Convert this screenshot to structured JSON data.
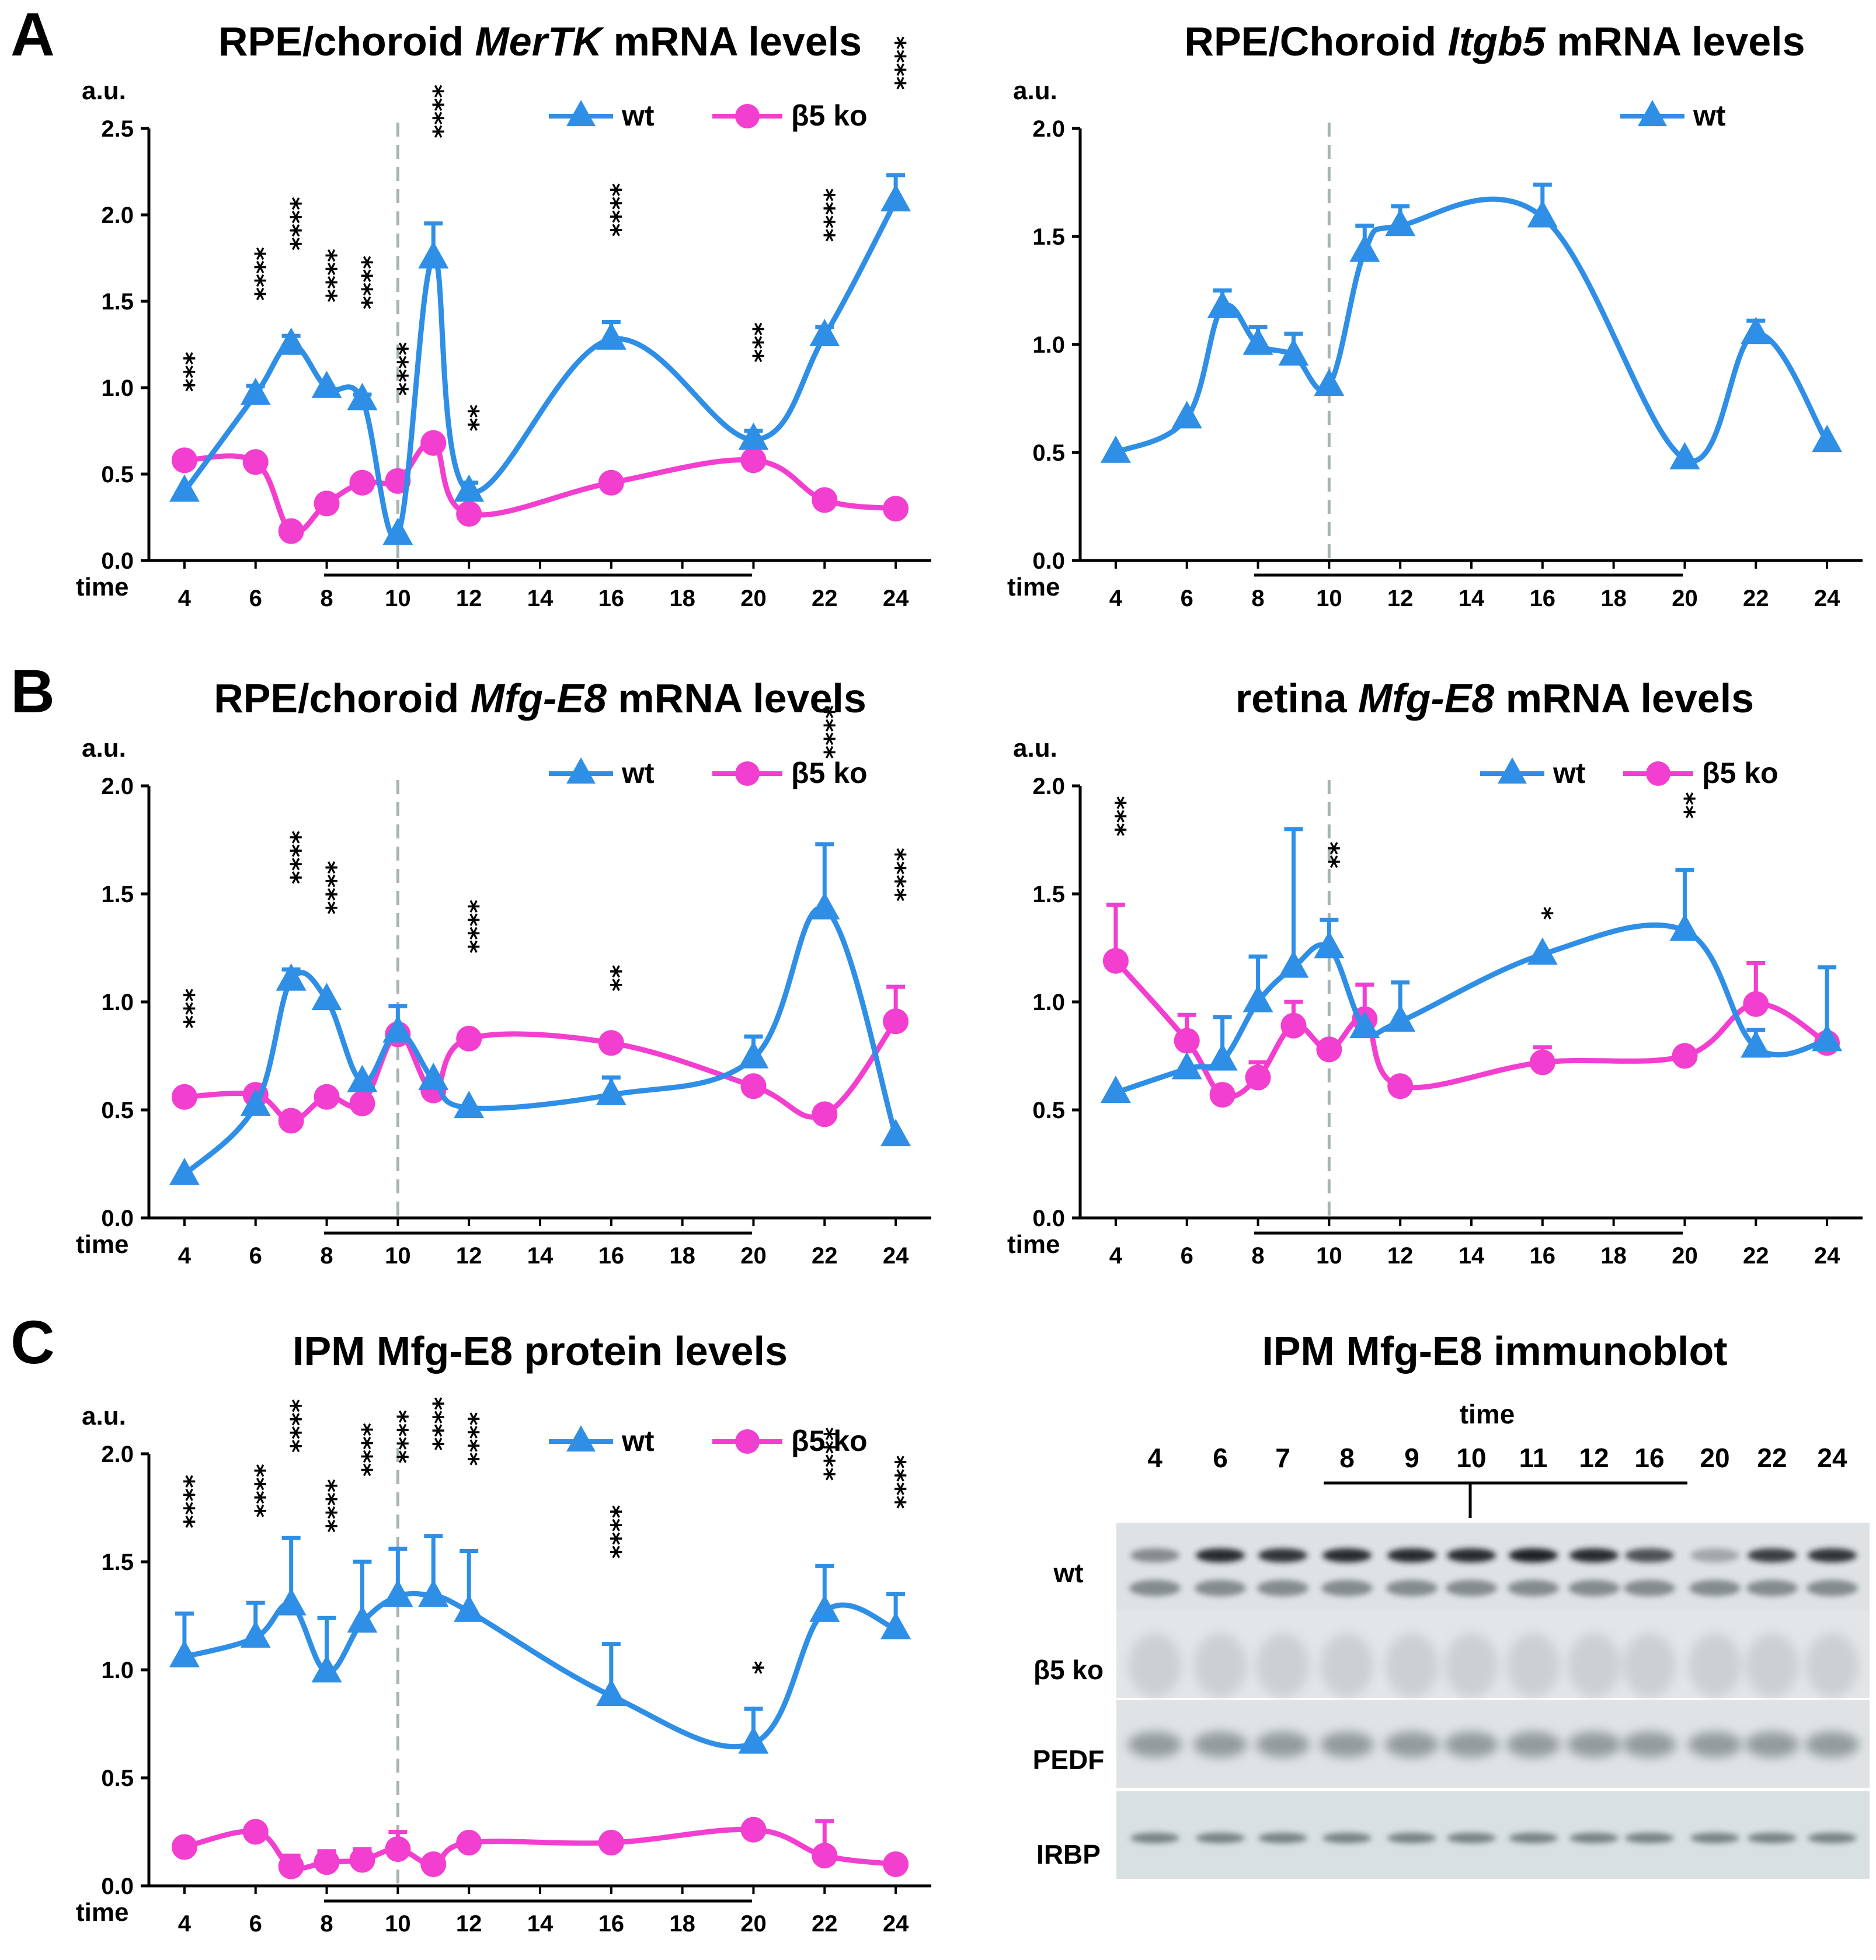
{
  "panel_labels": [
    "A",
    "B",
    "C"
  ],
  "colors": {
    "wt": "#2f8fe6",
    "ko": "#f23fd0",
    "vline": "#a8b4b4"
  },
  "chart_data": [
    {
      "type": "line",
      "title": {
        "pre": "RPE/choroid ",
        "it": "MerTK",
        "post": " mRNA levels"
      },
      "ylabel": "a.u.",
      "xlabel": "time",
      "ylim": [
        0,
        2.5
      ],
      "yticks": [
        "0.0",
        "0.5",
        "1.0",
        "1.5",
        "2.0",
        "2.5"
      ],
      "x_ticks": [
        "4",
        "6",
        "8",
        "10",
        "12",
        "14",
        "16",
        "18",
        "20",
        "22",
        "24"
      ],
      "legend": [
        "wt",
        "β5 ko"
      ],
      "series": [
        {
          "name": "wt",
          "x": [
            4,
            6,
            7,
            8,
            9,
            10,
            11,
            12,
            16,
            20,
            22,
            24
          ],
          "y": [
            0.4,
            0.96,
            1.25,
            1.0,
            0.93,
            0.15,
            1.75,
            0.4,
            1.28,
            0.7,
            1.3,
            2.08
          ],
          "err": [
            0,
            0.05,
            0.05,
            0,
            0.03,
            0,
            0.2,
            0.05,
            0.1,
            0.05,
            0.05,
            0.15
          ]
        },
        {
          "name": "β5 ko",
          "x": [
            4,
            6,
            7,
            8,
            9,
            10,
            11,
            12,
            16,
            20,
            22,
            24
          ],
          "y": [
            0.58,
            0.57,
            0.17,
            0.33,
            0.45,
            0.46,
            0.68,
            0.27,
            0.45,
            0.58,
            0.35,
            0.3
          ],
          "err": [
            0,
            0,
            0,
            0,
            0,
            0,
            0,
            0,
            0,
            0,
            0,
            0
          ]
        }
      ],
      "annotations": [
        {
          "x": 4,
          "text": "***"
        },
        {
          "x": 6,
          "text": "****"
        },
        {
          "x": 7,
          "text": "****"
        },
        {
          "x": 8,
          "text": "****"
        },
        {
          "x": 9,
          "text": "****"
        },
        {
          "x": 10,
          "text": "****"
        },
        {
          "x": 11,
          "text": "****"
        },
        {
          "x": 12,
          "text": "**"
        },
        {
          "x": 16,
          "text": "****"
        },
        {
          "x": 20,
          "text": "***"
        },
        {
          "x": 22,
          "text": "****"
        },
        {
          "x": 24,
          "text": "****"
        }
      ]
    },
    {
      "type": "line",
      "title": {
        "pre": "RPE/Choroid ",
        "it": "Itgb5",
        "post": " mRNA levels"
      },
      "ylabel": "a.u.",
      "xlabel": "time",
      "ylim": [
        0,
        2.0
      ],
      "yticks": [
        "0.0",
        "0.5",
        "1.0",
        "1.5",
        "2.0"
      ],
      "x_ticks": [
        "4",
        "6",
        "8",
        "10",
        "12",
        "14",
        "16",
        "18",
        "20",
        "22",
        "24"
      ],
      "legend": [
        "wt"
      ],
      "series": [
        {
          "name": "wt",
          "x": [
            4,
            6,
            7,
            8,
            9,
            10,
            11,
            12,
            16,
            20,
            22,
            24
          ],
          "y": [
            0.5,
            0.66,
            1.17,
            1.0,
            0.95,
            0.81,
            1.43,
            1.55,
            1.59,
            0.47,
            1.05,
            0.55
          ],
          "err": [
            0,
            0,
            0.08,
            0.08,
            0.1,
            0,
            0.12,
            0.09,
            0.15,
            0,
            0.06,
            0
          ]
        }
      ],
      "annotations": []
    },
    {
      "type": "line",
      "title": {
        "pre": "RPE/choroid ",
        "it": "Mfg-E8",
        "post": " mRNA levels"
      },
      "ylabel": "a.u.",
      "xlabel": "time",
      "ylim": [
        0,
        2.0
      ],
      "yticks": [
        "0.0",
        "0.5",
        "1.0",
        "1.5",
        "2.0"
      ],
      "x_ticks": [
        "4",
        "6",
        "8",
        "10",
        "12",
        "14",
        "16",
        "18",
        "20",
        "22",
        "24"
      ],
      "legend": [
        "wt",
        "β5 ko"
      ],
      "series": [
        {
          "name": "wt",
          "x": [
            4,
            6,
            7,
            8,
            9,
            10,
            11,
            12,
            16,
            20,
            22,
            24
          ],
          "y": [
            0.2,
            0.52,
            1.1,
            1.01,
            0.63,
            0.86,
            0.64,
            0.51,
            0.57,
            0.74,
            1.43,
            0.38
          ],
          "err": [
            0,
            0,
            0.05,
            0,
            0,
            0.12,
            0,
            0,
            0.08,
            0.1,
            0.3,
            0
          ]
        },
        {
          "name": "β5 ko",
          "x": [
            4,
            6,
            7,
            8,
            9,
            10,
            11,
            12,
            16,
            20,
            22,
            24
          ],
          "y": [
            0.56,
            0.57,
            0.45,
            0.56,
            0.53,
            0.85,
            0.59,
            0.83,
            0.81,
            0.61,
            0.48,
            0.91
          ],
          "err": [
            0,
            0,
            0,
            0,
            0,
            0,
            0,
            0,
            0,
            0,
            0,
            0.16
          ]
        }
      ],
      "annotations": [
        {
          "x": 4,
          "text": "***"
        },
        {
          "x": 7,
          "text": "****"
        },
        {
          "x": 8,
          "text": "****"
        },
        {
          "x": 12,
          "text": "****"
        },
        {
          "x": 16,
          "text": "**"
        },
        {
          "x": 22,
          "text": "****"
        },
        {
          "x": 24,
          "text": "****"
        }
      ]
    },
    {
      "type": "line",
      "title": {
        "pre": "retina ",
        "it": "Mfg-E8",
        "post": " mRNA levels"
      },
      "ylabel": "a.u.",
      "xlabel": "time",
      "ylim": [
        0,
        2.0
      ],
      "yticks": [
        "0.0",
        "0.5",
        "1.0",
        "1.5",
        "2.0"
      ],
      "x_ticks": [
        "4",
        "6",
        "8",
        "10",
        "12",
        "14",
        "16",
        "18",
        "20",
        "22",
        "24"
      ],
      "legend": [
        "wt",
        "β5 ko"
      ],
      "series": [
        {
          "name": "wt",
          "x": [
            4,
            6,
            7,
            8,
            9,
            10,
            11,
            12,
            16,
            20,
            22,
            24
          ],
          "y": [
            0.58,
            0.69,
            0.73,
            1.0,
            1.16,
            1.25,
            0.88,
            0.91,
            1.22,
            1.33,
            0.79,
            0.82
          ],
          "err": [
            0,
            0,
            0.2,
            0.21,
            0.64,
            0.13,
            0,
            0.18,
            0,
            0.28,
            0.08,
            0.34
          ]
        },
        {
          "name": "β5 ko",
          "x": [
            4,
            6,
            7,
            8,
            9,
            10,
            11,
            12,
            16,
            20,
            22,
            24
          ],
          "y": [
            1.19,
            0.82,
            0.57,
            0.65,
            0.89,
            0.78,
            0.92,
            0.61,
            0.72,
            0.75,
            0.99,
            0.81
          ],
          "err": [
            0.26,
            0.12,
            0,
            0.07,
            0.11,
            0,
            0.16,
            0,
            0.07,
            0,
            0.19,
            0
          ]
        }
      ],
      "annotations": [
        {
          "x": 4,
          "text": "***"
        },
        {
          "x": 10,
          "text": "**"
        },
        {
          "x": 16,
          "text": "*"
        },
        {
          "x": 20,
          "text": "**"
        }
      ]
    },
    {
      "type": "line",
      "title": {
        "pre": "IPM Mfg-E8 protein levels",
        "it": "",
        "post": ""
      },
      "ylabel": "a.u.",
      "xlabel": "time",
      "ylim": [
        0,
        2.0
      ],
      "yticks": [
        "0.0",
        "0.5",
        "1.0",
        "1.5",
        "2.0"
      ],
      "x_ticks": [
        "4",
        "6",
        "8",
        "10",
        "12",
        "14",
        "16",
        "18",
        "20",
        "22",
        "24"
      ],
      "legend": [
        "wt",
        "β5 ko"
      ],
      "series": [
        {
          "name": "wt",
          "x": [
            4,
            6,
            7,
            8,
            9,
            10,
            11,
            12,
            16,
            20,
            22,
            24
          ],
          "y": [
            1.06,
            1.15,
            1.3,
            0.99,
            1.22,
            1.34,
            1.34,
            1.27,
            0.88,
            0.66,
            1.27,
            1.19
          ],
          "err": [
            0.2,
            0.16,
            0.31,
            0.25,
            0.28,
            0.22,
            0.28,
            0.28,
            0.24,
            0.16,
            0.21,
            0.16
          ]
        },
        {
          "name": "β5 ko",
          "x": [
            4,
            6,
            7,
            8,
            9,
            10,
            11,
            12,
            16,
            20,
            22,
            24
          ],
          "y": [
            0.18,
            0.25,
            0.09,
            0.11,
            0.12,
            0.17,
            0.1,
            0.2,
            0.2,
            0.26,
            0.14,
            0.1
          ],
          "err": [
            0,
            0,
            0.05,
            0.05,
            0.05,
            0.08,
            0,
            0,
            0,
            0,
            0.16,
            0
          ]
        }
      ],
      "annotations": [
        {
          "x": 4,
          "text": "****"
        },
        {
          "x": 6,
          "text": "****"
        },
        {
          "x": 7,
          "text": "****"
        },
        {
          "x": 8,
          "text": "****"
        },
        {
          "x": 9,
          "text": "****"
        },
        {
          "x": 10,
          "text": "****"
        },
        {
          "x": 11,
          "text": "****"
        },
        {
          "x": 12,
          "text": "****"
        },
        {
          "x": 16,
          "text": "****"
        },
        {
          "x": 20,
          "text": "*"
        },
        {
          "x": 22,
          "text": "****"
        },
        {
          "x": 24,
          "text": "****"
        }
      ]
    }
  ],
  "immunoblot": {
    "title": "IPM Mfg-E8 immunoblot",
    "time_label": "time",
    "lanes": [
      "4",
      "6",
      "7",
      "8",
      "9",
      "10",
      "11",
      "12",
      "16",
      "20",
      "22",
      "24"
    ],
    "rows": [
      "wt",
      "β5 ko",
      "PEDF",
      "IRBP"
    ]
  }
}
